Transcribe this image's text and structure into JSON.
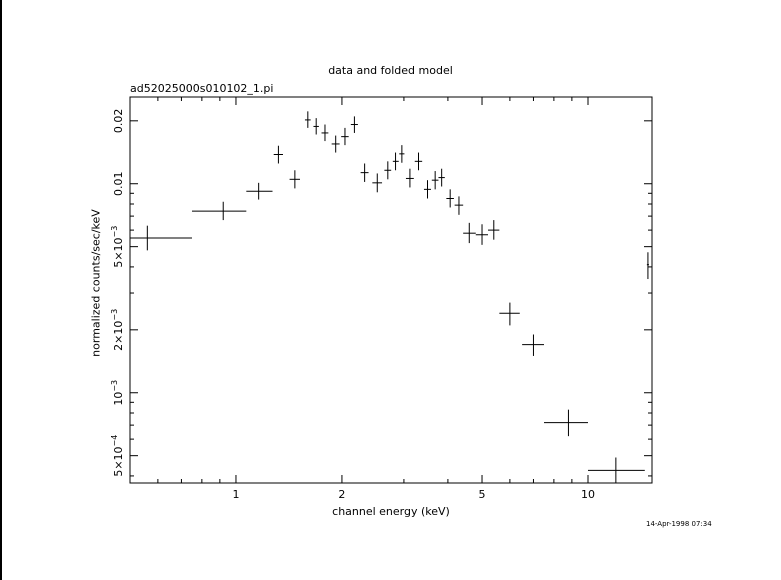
{
  "page": {
    "title": "data and folded model",
    "filename": "ad52025000s010102_1.pi",
    "timestamp": "14-Apr-1998 07:34"
  },
  "chart_data": {
    "type": "scatter",
    "title": "data and folded model",
    "xlabel": "channel energy (keV)",
    "ylabel": "normalized counts/sec/keV",
    "xscale": "log",
    "yscale": "log",
    "xlim": [
      0.5,
      15.2
    ],
    "ylim": [
      0.00037,
      0.026
    ],
    "xticks": [
      {
        "value": 1,
        "label": "1"
      },
      {
        "value": 2,
        "label": "2"
      },
      {
        "value": 5,
        "label": "5"
      },
      {
        "value": 10,
        "label": "10"
      }
    ],
    "yticks": [
      {
        "value": 0.0005,
        "mant": "5×10",
        "exp": "−4"
      },
      {
        "value": 0.001,
        "mant": "10",
        "exp": "−3"
      },
      {
        "value": 0.002,
        "mant": "2×10",
        "exp": "−3"
      },
      {
        "value": 0.005,
        "mant": "5×10",
        "exp": "−3"
      },
      {
        "value": 0.01,
        "mant": "0.01",
        "exp": ""
      },
      {
        "value": 0.02,
        "mant": "0.02",
        "exp": ""
      }
    ],
    "points": [
      {
        "x": 0.56,
        "xlo": 0.5,
        "xhi": 0.75,
        "y": 0.0055,
        "ylo": 0.0048,
        "yhi": 0.0063
      },
      {
        "x": 0.92,
        "xlo": 0.75,
        "xhi": 1.07,
        "y": 0.0074,
        "ylo": 0.0067,
        "yhi": 0.0082
      },
      {
        "x": 1.16,
        "xlo": 1.07,
        "xhi": 1.27,
        "y": 0.0092,
        "ylo": 0.0084,
        "yhi": 0.0101
      },
      {
        "x": 1.32,
        "xlo": 1.28,
        "xhi": 1.36,
        "y": 0.0138,
        "ylo": 0.0125,
        "yhi": 0.0152
      },
      {
        "x": 1.47,
        "xlo": 1.42,
        "xhi": 1.52,
        "y": 0.0105,
        "ylo": 0.0095,
        "yhi": 0.0116
      },
      {
        "x": 1.6,
        "xlo": 1.57,
        "xhi": 1.63,
        "y": 0.0202,
        "ylo": 0.0185,
        "yhi": 0.0222
      },
      {
        "x": 1.69,
        "xlo": 1.66,
        "xhi": 1.72,
        "y": 0.0188,
        "ylo": 0.0172,
        "yhi": 0.0206
      },
      {
        "x": 1.79,
        "xlo": 1.75,
        "xhi": 1.83,
        "y": 0.0175,
        "ylo": 0.016,
        "yhi": 0.0192
      },
      {
        "x": 1.92,
        "xlo": 1.87,
        "xhi": 1.97,
        "y": 0.0155,
        "ylo": 0.0141,
        "yhi": 0.017
      },
      {
        "x": 2.04,
        "xlo": 1.99,
        "xhi": 2.09,
        "y": 0.0168,
        "ylo": 0.0153,
        "yhi": 0.0185
      },
      {
        "x": 2.17,
        "xlo": 2.12,
        "xhi": 2.22,
        "y": 0.0192,
        "ylo": 0.0175,
        "yhi": 0.021
      },
      {
        "x": 2.32,
        "xlo": 2.26,
        "xhi": 2.38,
        "y": 0.0113,
        "ylo": 0.0102,
        "yhi": 0.0125
      },
      {
        "x": 2.52,
        "xlo": 2.44,
        "xhi": 2.6,
        "y": 0.0101,
        "ylo": 0.0091,
        "yhi": 0.0112
      },
      {
        "x": 2.7,
        "xlo": 2.64,
        "xhi": 2.76,
        "y": 0.0116,
        "ylo": 0.0105,
        "yhi": 0.0128
      },
      {
        "x": 2.84,
        "xlo": 2.79,
        "xhi": 2.9,
        "y": 0.0128,
        "ylo": 0.0116,
        "yhi": 0.0141
      },
      {
        "x": 2.96,
        "xlo": 2.91,
        "xhi": 3.01,
        "y": 0.0139,
        "ylo": 0.0126,
        "yhi": 0.0153
      },
      {
        "x": 3.12,
        "xlo": 3.04,
        "xhi": 3.2,
        "y": 0.0106,
        "ylo": 0.0096,
        "yhi": 0.0118
      },
      {
        "x": 3.3,
        "xlo": 3.22,
        "xhi": 3.38,
        "y": 0.0128,
        "ylo": 0.0116,
        "yhi": 0.0141
      },
      {
        "x": 3.5,
        "xlo": 3.42,
        "xhi": 3.58,
        "y": 0.0094,
        "ylo": 0.0085,
        "yhi": 0.0104
      },
      {
        "x": 3.68,
        "xlo": 3.6,
        "xhi": 3.76,
        "y": 0.0104,
        "ylo": 0.0094,
        "yhi": 0.0115
      },
      {
        "x": 3.84,
        "xlo": 3.76,
        "xhi": 3.92,
        "y": 0.0107,
        "ylo": 0.0097,
        "yhi": 0.0118
      },
      {
        "x": 4.06,
        "xlo": 3.96,
        "xhi": 4.16,
        "y": 0.0085,
        "ylo": 0.0077,
        "yhi": 0.0094
      },
      {
        "x": 4.3,
        "xlo": 4.18,
        "xhi": 4.42,
        "y": 0.0079,
        "ylo": 0.0071,
        "yhi": 0.0087
      },
      {
        "x": 4.6,
        "xlo": 4.42,
        "xhi": 4.8,
        "y": 0.0058,
        "ylo": 0.0052,
        "yhi": 0.0065
      },
      {
        "x": 5.0,
        "xlo": 4.8,
        "xhi": 5.2,
        "y": 0.0057,
        "ylo": 0.0051,
        "yhi": 0.0064
      },
      {
        "x": 5.4,
        "xlo": 5.2,
        "xhi": 5.6,
        "y": 0.006,
        "ylo": 0.0054,
        "yhi": 0.0067
      },
      {
        "x": 6.0,
        "xlo": 5.6,
        "xhi": 6.4,
        "y": 0.0024,
        "ylo": 0.0021,
        "yhi": 0.0027
      },
      {
        "x": 7.0,
        "xlo": 6.5,
        "xhi": 7.5,
        "y": 0.0017,
        "ylo": 0.0015,
        "yhi": 0.0019
      },
      {
        "x": 8.8,
        "xlo": 7.5,
        "xhi": 10.0,
        "y": 0.00072,
        "ylo": 0.00062,
        "yhi": 0.00083
      },
      {
        "x": 12.0,
        "xlo": 10.0,
        "xhi": 14.5,
        "y": 0.000425,
        "ylo": 0.00037,
        "yhi": 0.00049
      },
      {
        "x": 14.8,
        "xlo": 14.7,
        "xhi": 14.9,
        "y": 0.0041,
        "ylo": 0.0035,
        "yhi": 0.0047
      }
    ]
  }
}
